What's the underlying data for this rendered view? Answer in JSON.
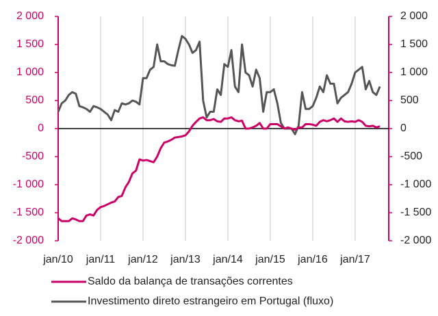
{
  "chart_data": {
    "type": "line",
    "categories": [
      "jan/10",
      null,
      null,
      null,
      null,
      null,
      null,
      null,
      null,
      null,
      null,
      null,
      "jan/11",
      null,
      null,
      null,
      null,
      null,
      null,
      null,
      null,
      null,
      null,
      null,
      "jan/12",
      null,
      null,
      null,
      null,
      null,
      null,
      null,
      null,
      null,
      null,
      null,
      "jan/13",
      null,
      null,
      null,
      null,
      null,
      null,
      null,
      null,
      null,
      null,
      null,
      "jan/14",
      null,
      null,
      null,
      null,
      null,
      null,
      null,
      null,
      null,
      null,
      null,
      "jan/15",
      null,
      null,
      null,
      null,
      null,
      null,
      null,
      null,
      null,
      null,
      null,
      "jan/16",
      null,
      null,
      null,
      null,
      null,
      null,
      null,
      null,
      null,
      null,
      null,
      "jan/17",
      null,
      null,
      null,
      null,
      null,
      null,
      null
    ],
    "series": [
      {
        "name": "Saldo da balança de transações correntes",
        "color": "#cc0066",
        "axis": "y",
        "values": [
          -1600,
          -1650,
          -1650,
          -1650,
          -1600,
          -1620,
          -1650,
          -1650,
          -1550,
          -1530,
          -1550,
          -1450,
          -1400,
          -1380,
          -1350,
          -1320,
          -1300,
          -1220,
          -1200,
          -1050,
          -950,
          -800,
          -750,
          -550,
          -570,
          -560,
          -580,
          -600,
          -500,
          -350,
          -250,
          -230,
          -200,
          -160,
          -150,
          -140,
          -120,
          -50,
          50,
          120,
          180,
          200,
          150,
          150,
          170,
          130,
          120,
          180,
          180,
          200,
          150,
          130,
          140,
          0,
          0,
          20,
          50,
          100,
          0,
          0,
          80,
          80,
          80,
          40,
          0,
          20,
          0,
          -20,
          20,
          20,
          80,
          80,
          70,
          50,
          120,
          150,
          130,
          150,
          180,
          120,
          180,
          130,
          120,
          130,
          120,
          150,
          120,
          50,
          40,
          50,
          20,
          40
        ]
      },
      {
        "name": "Investimento direto estrangeiro em Portugal (fluxo)",
        "color": "#555555",
        "axis": "y2",
        "values": [
          300,
          450,
          500,
          600,
          650,
          620,
          400,
          380,
          350,
          300,
          400,
          380,
          350,
          300,
          250,
          150,
          330,
          300,
          450,
          430,
          450,
          500,
          480,
          430,
          900,
          900,
          1050,
          1100,
          1500,
          1200,
          1200,
          1150,
          1130,
          1120,
          1400,
          1650,
          1600,
          1500,
          1350,
          1400,
          1550,
          500,
          200,
          300,
          300,
          700,
          600,
          1150,
          1100,
          1400,
          750,
          650,
          1500,
          1000,
          950,
          750,
          1050,
          900,
          300,
          650,
          650,
          700,
          450,
          100,
          0,
          0,
          0,
          -100,
          50,
          650,
          350,
          350,
          400,
          550,
          750,
          650,
          950,
          800,
          800,
          450,
          550,
          600,
          650,
          800,
          1000,
          1050,
          1100,
          700,
          850,
          650,
          600,
          750
        ]
      }
    ],
    "ylim": [
      -2000,
      2000
    ],
    "yticks": [
      {
        "value": -2000,
        "label": "-2 000"
      },
      {
        "value": -1500,
        "label": "-1 500"
      },
      {
        "value": -1000,
        "label": "-1 000"
      },
      -500,
      0,
      500,
      {
        "value": 1000,
        "label": "1 000"
      },
      {
        "value": 1500,
        "label": "1 500"
      },
      {
        "value": 2000,
        "label": "2 000"
      }
    ],
    "y2lim": [
      -2000,
      2000
    ],
    "y2ticks": [
      {
        "value": -2000,
        "label": "-2 000"
      },
      {
        "value": -1500,
        "label": "-1 500"
      },
      {
        "value": -1000,
        "label": "-1 000"
      },
      -500,
      0,
      500,
      {
        "value": 1000,
        "label": "1 000"
      },
      {
        "value": 1500,
        "label": "1 500"
      },
      {
        "value": 2000,
        "label": "2 000"
      }
    ],
    "grid": true,
    "legend": "bottom"
  }
}
